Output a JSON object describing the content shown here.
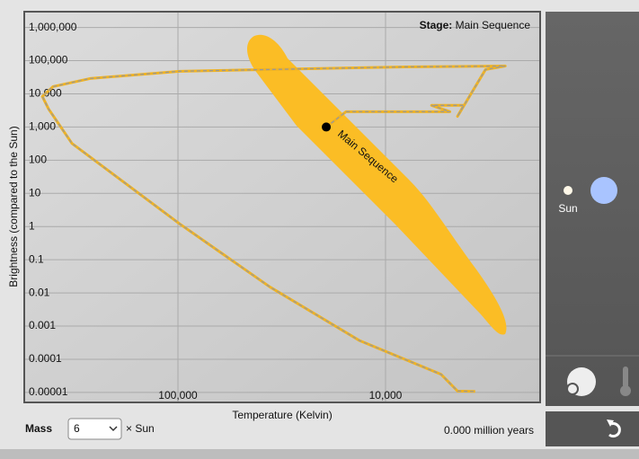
{
  "chart_data": {
    "type": "line",
    "xlabel": "Temperature (Kelvin)",
    "ylabel": "Brightness (compared to the Sun)",
    "stage_label": "Stage:",
    "stage": "Main Sequence",
    "annotation": "Main Sequence",
    "xscale": "log",
    "yscale": "log",
    "xlim": [
      550000,
      1800
    ],
    "ylim": [
      5e-06,
      3000000
    ],
    "xticks": [
      {
        "value": 100000,
        "label": "100,000"
      },
      {
        "value": 10000,
        "label": "10,000"
      }
    ],
    "yticks": [
      {
        "value": 1000000,
        "label": "1,000,000"
      },
      {
        "value": 100000,
        "label": "100,000"
      },
      {
        "value": 10000,
        "label": "10,000"
      },
      {
        "value": 1000,
        "label": "1,000"
      },
      100,
      10,
      1,
      0.1,
      0.01,
      0.001,
      0.0001,
      1e-05
    ],
    "grid": true,
    "x": [
      19300,
      15500,
      4900,
      6000,
      4200,
      4500,
      3300,
      2650,
      8100,
      98000,
      265000,
      400000,
      450000,
      420000,
      324000,
      98000,
      36000,
      13400,
      5400,
      4500,
      3700
    ],
    "series": [
      {
        "color": "#f0b323",
        "values": [
          1000,
          2900,
          2900,
          4500,
          4500,
          2100,
          54000,
          69000,
          65000,
          48000,
          29000,
          16500,
          8300,
          3500,
          320,
          1.2,
          0.015,
          0.00037,
          3.5e-05,
          1.1e-05,
          1.07e-05
        ]
      }
    ],
    "current_star": {
      "x": 19300,
      "y": 1000
    }
  },
  "controls": {
    "mass_label": "Mass",
    "mass": 6,
    "mass_unit": "× Sun",
    "age": "0.000 million years"
  },
  "panel": {
    "sun_label": "Sun"
  }
}
